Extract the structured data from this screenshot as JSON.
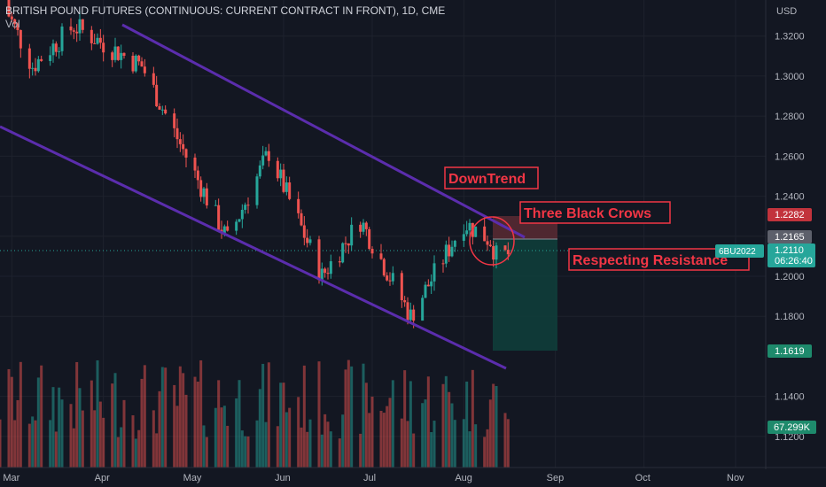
{
  "header": {
    "title": "BRITISH POUND FUTURES (CONTINUOUS: CURRENT CONTRACT IN FRONT), 1D, CME",
    "indicator": "Vol"
  },
  "axis": {
    "currency": "USD",
    "y_ticks": [
      "1.3200",
      "1.3000",
      "1.2800",
      "1.2600",
      "1.2400",
      "1.2200",
      "1.2000",
      "1.1800",
      "1.1400",
      "1.1200"
    ],
    "x_ticks": [
      "Mar",
      "Apr",
      "May",
      "Jun",
      "Jul",
      "Aug",
      "Sep",
      "Oct",
      "Nov"
    ]
  },
  "price_labels": {
    "stop": "1.2282",
    "entry": "1.2165",
    "symbol": "6BU2022",
    "last_price": "1.2110",
    "countdown": "06:26:40",
    "target": "1.1619",
    "volume": "67.299K"
  },
  "annotations": {
    "downtrend": "DownTrend",
    "crows": "Three Black Crows",
    "resistance": "Respecting Resistance"
  },
  "colors": {
    "background": "#131722",
    "bull": "#26a69a",
    "bear": "#ef5350",
    "trendline": "#5b2dad",
    "annotation": "#f23645",
    "target_zone": "#0f3d3a",
    "stop_zone": "#5a2a32"
  },
  "chart_data": {
    "type": "candlestick",
    "timeframe": "1D",
    "symbol": "6BU2022",
    "y_range": [
      1.108,
      1.338
    ],
    "x_range": [
      "2022-02-25",
      "2022-11-10"
    ],
    "ohlc_key_points": [
      {
        "date": "2022-02-25",
        "close": 1.34
      },
      {
        "date": "2022-03-08",
        "close": 1.305
      },
      {
        "date": "2022-03-22",
        "close": 1.325
      },
      {
        "date": "2022-04-14",
        "close": 1.305
      },
      {
        "date": "2022-05-13",
        "close": 1.218
      },
      {
        "date": "2022-05-27",
        "close": 1.262
      },
      {
        "date": "2022-06-14",
        "close": 1.2
      },
      {
        "date": "2022-06-27",
        "close": 1.228
      },
      {
        "date": "2022-07-14",
        "close": 1.18
      },
      {
        "date": "2022-08-01",
        "close": 1.227
      },
      {
        "date": "2022-08-10",
        "close": 1.218
      },
      {
        "date": "2022-08-12",
        "close": 1.21
      },
      {
        "date": "2022-08-16",
        "close": 1.211
      }
    ],
    "position": {
      "entry": 1.2165,
      "stop": 1.2282,
      "target": 1.1619
    },
    "volume_last": 67299,
    "volume_range": [
      0,
      160000
    ]
  }
}
